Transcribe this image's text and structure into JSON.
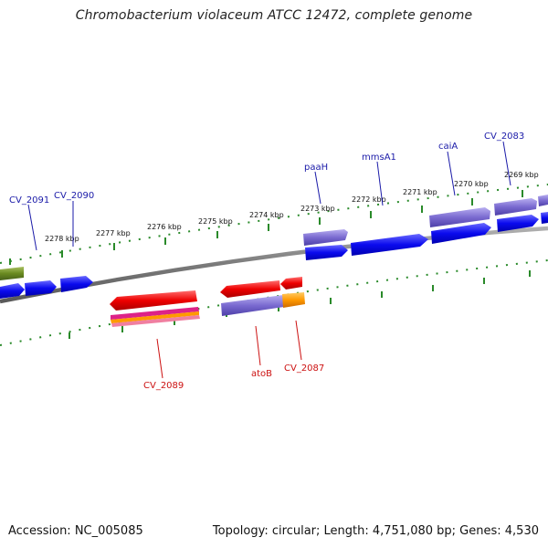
{
  "header": {
    "title": "Chromobacterium violaceum ATCC 12472, complete genome"
  },
  "footer": {
    "accession": "Accession: NC_005085",
    "summary": "Topology: circular; Length: 4,751,080 bp; Genes: 4,530"
  },
  "map": {
    "ruler_labels": [
      "2278 kbp",
      "2277 kbp",
      "2276 kbp",
      "2275 kbp",
      "2274 kbp",
      "2273 kbp",
      "2272 kbp",
      "2271 kbp",
      "2270 kbp",
      "2269 kbp"
    ],
    "forward_gene_labels": [
      "CV_2091",
      "CV_2090",
      "paaH",
      "mmsA1",
      "caiA",
      "CV_2083"
    ],
    "reverse_gene_labels": [
      "CV_2089",
      "atoB",
      "CV_2087"
    ],
    "colors": {
      "backbone": "#888888",
      "ruler_ticks": "#2a8a2a",
      "forward_cds": "#0a0aee",
      "cog_purple": "#7a6ad0",
      "reverse_cds": "#ee0000",
      "cog_orange": "#ff9900",
      "cog_olive": "#6a8a20",
      "cog_magenta": "#dd2288",
      "forward_label": "#1a1aa8",
      "reverse_label": "#cc1111"
    }
  }
}
